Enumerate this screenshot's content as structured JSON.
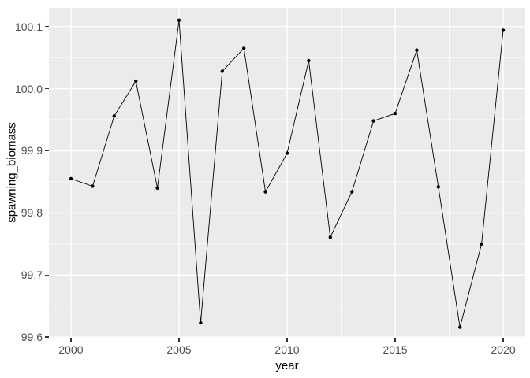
{
  "chart_data": {
    "type": "line",
    "title": "",
    "xlabel": "year",
    "ylabel": "spawning_biomass",
    "x": [
      2000,
      2001,
      2002,
      2003,
      2004,
      2005,
      2006,
      2007,
      2008,
      2009,
      2010,
      2011,
      2012,
      2013,
      2014,
      2015,
      2016,
      2017,
      2018,
      2019,
      2020
    ],
    "values": [
      99.855,
      99.843,
      99.956,
      100.012,
      99.84,
      100.11,
      99.623,
      100.028,
      100.065,
      99.834,
      99.896,
      100.045,
      99.761,
      99.834,
      99.948,
      99.96,
      100.062,
      99.842,
      99.616,
      99.75,
      100.094
    ],
    "x_ticks": [
      2000,
      2005,
      2010,
      2015,
      2020
    ],
    "x_minor_ticks": [
      2002.5,
      2007.5,
      2012.5,
      2017.5
    ],
    "y_tick_labels": [
      "99.6",
      "99.7",
      "99.8",
      "99.9",
      "100.0",
      "100.1"
    ],
    "y_minor_ticks": [
      99.65,
      99.75,
      99.85,
      99.95,
      100.05
    ],
    "xlim": [
      1998.98,
      2021.02
    ],
    "ylim": [
      99.599,
      100.13
    ],
    "grid": true,
    "legend_position": "none",
    "panel_bg": "#EBEBEB",
    "grid_color": "#FFFFFF",
    "line_color": "#000000",
    "point_color": "#000000",
    "tick_label_color": "#4D4D4D",
    "axis_title_color": "#000000"
  }
}
